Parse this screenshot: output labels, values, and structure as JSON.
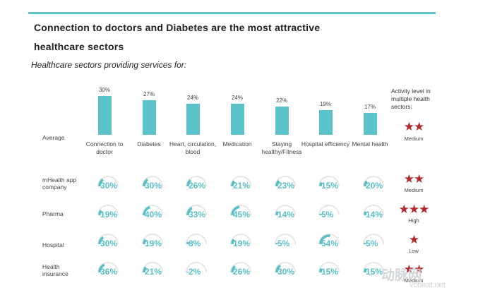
{
  "header": {
    "title_line1": "Connection to doctors and Diabetes are the most attractive",
    "title_line2": "healthcare sectors",
    "subtitle": "Healthcare sectors providing services for:",
    "activity_header": "Activity level in multiple health sectors:"
  },
  "colors": {
    "bar": "#5bc4cb",
    "gauge_fill": "#59bfc7",
    "gauge_track": "#e6e6e6",
    "star": "#b3282d",
    "topline": "#5ec3c9"
  },
  "chart_data": {
    "type": "bar",
    "title": "Healthcare sectors providing services for:",
    "categories": [
      "Connection to doctor",
      "Diabetes",
      "Heart, circulation, blood",
      "Medication",
      "Staying healthy/Fitness",
      "Hospital efficiency",
      "Mental health"
    ],
    "series": [
      {
        "name": "Average",
        "values": [
          30,
          27,
          24,
          24,
          22,
          19,
          17
        ],
        "labels": [
          "30%",
          "27%",
          "24%",
          "24%",
          "22%",
          "19%",
          "17%"
        ]
      }
    ],
    "ylim": [
      0,
      35
    ],
    "xlabel": "",
    "ylabel": ""
  },
  "average": {
    "label": "Average",
    "level": "Medium",
    "stars": "★★"
  },
  "segments": [
    {
      "label": "mHealth app company",
      "values": [
        30,
        30,
        26,
        21,
        23,
        15,
        20
      ],
      "labels": [
        "30%",
        "30%",
        "26%",
        "21%",
        "23%",
        "15%",
        "20%"
      ],
      "stars": "★★",
      "level": "Medium"
    },
    {
      "label": "Pharma",
      "values": [
        19,
        40,
        33,
        45,
        14,
        5,
        14
      ],
      "labels": [
        "19%",
        "40%",
        "33%",
        "45%",
        "14%",
        "5%",
        "14%"
      ],
      "stars": "★★★",
      "level": "High"
    },
    {
      "label": "Hospital",
      "values": [
        30,
        19,
        8,
        19,
        5,
        54,
        5
      ],
      "labels": [
        "30%",
        "19%",
        "8%",
        "19%",
        "5%",
        "54%",
        "5%"
      ],
      "stars": "★",
      "level": "Low"
    },
    {
      "label": "Health insurance",
      "values": [
        36,
        21,
        2,
        26,
        30,
        15,
        15
      ],
      "labels": [
        "36%",
        "21%",
        "2%",
        "26%",
        "30%",
        "15%",
        "15%"
      ],
      "stars": "★★",
      "level": "Medium"
    }
  ],
  "watermark": {
    "brand": "动脉网",
    "url": "vcbeat.net"
  }
}
